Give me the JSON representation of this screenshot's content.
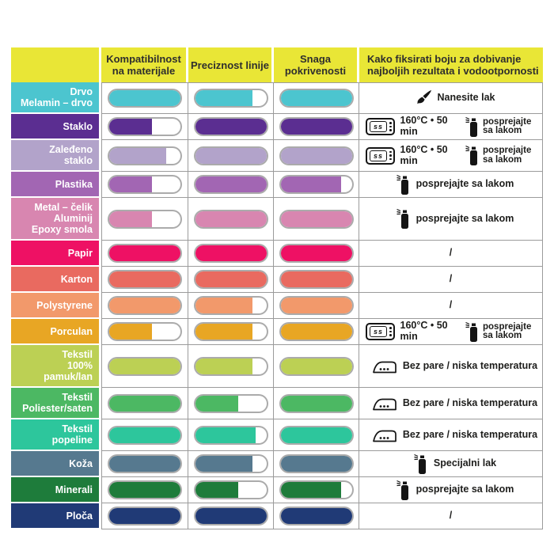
{
  "table": {
    "header": {
      "bg": "#e9e636",
      "cols": [
        "Kompatibilnost na materijale",
        "Preciznost linije",
        "Snaga pokrivenosti",
        "Kako fiksirati boju za dobivanje najboljih rezultata i vodootpornosti"
      ]
    },
    "grid_line_color": "#9b9b9b",
    "rows": [
      {
        "label": [
          "Drvo",
          "Melamin – drvo"
        ],
        "color": "#4cc5cf",
        "bars": [
          100,
          80,
          100
        ],
        "fix": {
          "centered": false,
          "items": [
            {
              "icon": "brush-icon",
              "text": "Nanesite lak"
            }
          ]
        }
      },
      {
        "label": [
          "Staklo"
        ],
        "color": "#5b2e91",
        "bars": [
          60,
          100,
          100
        ],
        "fix": {
          "centered": false,
          "items": [
            {
              "icon": "oven-icon",
              "text": "160°C • 50 min"
            },
            {
              "icon": "spray-icon",
              "text": "posprejajte sa lakom",
              "wrap": true
            }
          ]
        }
      },
      {
        "label": [
          "Zaleđeno",
          "staklo"
        ],
        "color": "#b2a3ca",
        "bars": [
          80,
          100,
          100
        ],
        "fix": {
          "centered": false,
          "items": [
            {
              "icon": "oven-icon",
              "text": "160°C • 50 min"
            },
            {
              "icon": "spray-icon",
              "text": "posprejajte sa lakom",
              "wrap": true
            }
          ]
        }
      },
      {
        "label": [
          "Plastika"
        ],
        "color": "#a266b3",
        "bars": [
          60,
          100,
          85
        ],
        "fix": {
          "centered": false,
          "items": [
            {
              "icon": "spray-icon",
              "text": "posprejajte sa lakom"
            }
          ]
        }
      },
      {
        "label": [
          "Metal – čelik",
          "Aluminij",
          "Epoxy smola"
        ],
        "color": "#d886b0",
        "bars": [
          60,
          100,
          100
        ],
        "fix": {
          "centered": false,
          "items": [
            {
              "icon": "spray-icon",
              "text": "posprejajte sa lakom"
            }
          ]
        }
      },
      {
        "label": [
          "Papir"
        ],
        "color": "#ee1164",
        "bars": [
          100,
          100,
          100
        ],
        "fix": {
          "centered": true,
          "items": [
            {
              "icon": null,
              "text": "/"
            }
          ]
        }
      },
      {
        "label": [
          "Karton"
        ],
        "color": "#e96a60",
        "bars": [
          100,
          100,
          100
        ],
        "fix": {
          "centered": true,
          "items": [
            {
              "icon": null,
              "text": "/"
            }
          ]
        }
      },
      {
        "label": [
          "Polystyrene"
        ],
        "color": "#f2996b",
        "bars": [
          100,
          80,
          100
        ],
        "fix": {
          "centered": true,
          "items": [
            {
              "icon": null,
              "text": "/"
            }
          ]
        }
      },
      {
        "label": [
          "Porculan"
        ],
        "color": "#e8a624",
        "bars": [
          60,
          80,
          100
        ],
        "fix": {
          "centered": false,
          "items": [
            {
              "icon": "oven-icon",
              "text": "160°C • 50 min"
            },
            {
              "icon": "spray-icon",
              "text": "posprejajte sa lakom",
              "wrap": true
            }
          ]
        }
      },
      {
        "label": [
          "Tekstil",
          "100% pamuk/lan"
        ],
        "color": "#bcd054",
        "bars": [
          100,
          80,
          100
        ],
        "fix": {
          "centered": false,
          "items": [
            {
              "icon": "iron-icon",
              "text": "Bez pare / niska temperatura"
            }
          ]
        }
      },
      {
        "label": [
          "Tekstil",
          "Poliester/saten"
        ],
        "color": "#4cb863",
        "bars": [
          100,
          60,
          100
        ],
        "fix": {
          "centered": false,
          "items": [
            {
              "icon": "iron-icon",
              "text": "Bez pare / niska temperatura"
            }
          ]
        }
      },
      {
        "label": [
          "Tekstil",
          "popeline"
        ],
        "color": "#2dc69c",
        "bars": [
          100,
          85,
          100
        ],
        "fix": {
          "centered": false,
          "items": [
            {
              "icon": "iron-icon",
              "text": "Bez pare / niska temperatura"
            }
          ]
        }
      },
      {
        "label": [
          "Koža"
        ],
        "color": "#56798f",
        "bars": [
          100,
          80,
          100
        ],
        "fix": {
          "centered": false,
          "items": [
            {
              "icon": "spray-icon",
              "text": "Specijalni lak"
            }
          ]
        }
      },
      {
        "label": [
          "Minerali"
        ],
        "color": "#1e7c3b",
        "bars": [
          100,
          60,
          85
        ],
        "fix": {
          "centered": false,
          "items": [
            {
              "icon": "spray-icon",
              "text": "posprejajte sa lakom"
            }
          ]
        }
      },
      {
        "label": [
          "Ploča"
        ],
        "color": "#203a76",
        "bars": [
          100,
          100,
          100
        ],
        "fix": {
          "centered": true,
          "items": [
            {
              "icon": null,
              "text": "/"
            }
          ]
        }
      }
    ]
  },
  "icons": {
    "oven_label": "ss"
  },
  "chart_data": {
    "type": "table",
    "title": "",
    "categories": [
      "Drvo Melamin – drvo",
      "Staklo",
      "Zaleđeno staklo",
      "Plastika",
      "Metal – čelik Aluminij Epoxy smola",
      "Papir",
      "Karton",
      "Polystyrene",
      "Porculan",
      "Tekstil 100% pamuk/lan",
      "Tekstil Poliester/saten",
      "Tekstil popeline",
      "Koža",
      "Minerali",
      "Ploča"
    ],
    "series": [
      {
        "name": "Kompatibilnost na materijale",
        "values": [
          100,
          60,
          80,
          60,
          60,
          100,
          100,
          100,
          60,
          100,
          100,
          100,
          100,
          100,
          100
        ]
      },
      {
        "name": "Preciznost linije",
        "values": [
          80,
          100,
          100,
          100,
          100,
          100,
          100,
          80,
          80,
          80,
          60,
          85,
          80,
          60,
          100
        ]
      },
      {
        "name": "Snaga pokrivenosti",
        "values": [
          100,
          100,
          100,
          85,
          100,
          100,
          100,
          100,
          100,
          100,
          100,
          100,
          100,
          85,
          100
        ]
      }
    ],
    "fixation": [
      "Nanesite lak",
      "160°C • 50 min + posprejajte sa lakom",
      "160°C • 50 min + posprejajte sa lakom",
      "posprejajte sa lakom",
      "posprejajte sa lakom",
      "/",
      "/",
      "/",
      "160°C • 50 min + posprejajte sa lakom",
      "Bez pare / niska temperatura",
      "Bez pare / niska temperatura",
      "Bez pare / niska temperatura",
      "Specijalni lak",
      "posprejajte sa lakom",
      "/"
    ],
    "ylim": [
      0,
      100
    ]
  }
}
